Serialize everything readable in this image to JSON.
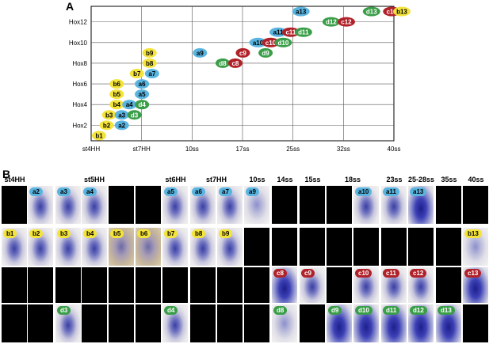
{
  "panel_a": {
    "letter": "A",
    "y_labels": [
      "Hox12",
      "Hox10",
      "Hox8",
      "Hox6",
      "Hox4",
      "Hox2"
    ],
    "x_labels": [
      "st4HH",
      "st7HH",
      "10ss",
      "17ss",
      "25ss",
      "32ss",
      "40ss"
    ],
    "colors": {
      "a": "#5ab4e0",
      "b": "#f3e33a",
      "c": "#b0222a",
      "d": "#3a9e48"
    },
    "markers": [
      {
        "label": "b1",
        "s": "b",
        "x": 0,
        "y": 0
      },
      {
        "label": "b2",
        "s": "b",
        "x": 0.15,
        "y": 1
      },
      {
        "label": "a2",
        "s": "a",
        "x": 0.45,
        "y": 1
      },
      {
        "label": "b3",
        "s": "b",
        "x": 0.2,
        "y": 2
      },
      {
        "label": "a3",
        "s": "a",
        "x": 0.45,
        "y": 2
      },
      {
        "label": "d3",
        "s": "d",
        "x": 0.7,
        "y": 2
      },
      {
        "label": "b4",
        "s": "b",
        "x": 0.35,
        "y": 3
      },
      {
        "label": "a4",
        "s": "a",
        "x": 0.6,
        "y": 3
      },
      {
        "label": "d4",
        "s": "d",
        "x": 0.85,
        "y": 3
      },
      {
        "label": "b5",
        "s": "b",
        "x": 0.35,
        "y": 4
      },
      {
        "label": "a5",
        "s": "a",
        "x": 0.85,
        "y": 4
      },
      {
        "label": "b6",
        "s": "b",
        "x": 0.35,
        "y": 5
      },
      {
        "label": "a6",
        "s": "a",
        "x": 0.85,
        "y": 5
      },
      {
        "label": "b7",
        "s": "b",
        "x": 0.75,
        "y": 6
      },
      {
        "label": "a7",
        "s": "a",
        "x": 1.05,
        "y": 6
      },
      {
        "label": "b8",
        "s": "b",
        "x": 1,
        "y": 7
      },
      {
        "label": "b9",
        "s": "b",
        "x": 1,
        "y": 8
      },
      {
        "label": "a9",
        "s": "a",
        "x": 2,
        "y": 8
      },
      {
        "label": "d8",
        "s": "d",
        "x": 2.45,
        "y": 7
      },
      {
        "label": "c8",
        "s": "c",
        "x": 2.7,
        "y": 7
      },
      {
        "label": "c9",
        "s": "c",
        "x": 2.85,
        "y": 8
      },
      {
        "label": "d9",
        "s": "d",
        "x": 3.3,
        "y": 8
      },
      {
        "label": "a10",
        "s": "a",
        "x": 3.15,
        "y": 9
      },
      {
        "label": "c10",
        "s": "c",
        "x": 3.4,
        "y": 9
      },
      {
        "label": "d10",
        "s": "d",
        "x": 3.65,
        "y": 9
      },
      {
        "label": "a11",
        "s": "a",
        "x": 3.55,
        "y": 10
      },
      {
        "label": "c11",
        "s": "c",
        "x": 3.8,
        "y": 10
      },
      {
        "label": "d11",
        "s": "d",
        "x": 4.05,
        "y": 10
      },
      {
        "label": "d12",
        "s": "d",
        "x": 4.6,
        "y": 11
      },
      {
        "label": "c12",
        "s": "c",
        "x": 4.9,
        "y": 11
      },
      {
        "label": "a13",
        "s": "a",
        "x": 4,
        "y": 12
      },
      {
        "label": "d13",
        "s": "d",
        "x": 5.4,
        "y": 12
      },
      {
        "label": "c13",
        "s": "c",
        "x": 5.8,
        "y": 12
      },
      {
        "label": "b13",
        "s": "b",
        "x": 6,
        "y": 12
      }
    ]
  },
  "panel_b": {
    "letter": "B",
    "column_headers": [
      "st4HH",
      "st5HH",
      "st6HH",
      "st7HH",
      "10ss",
      "14ss",
      "15ss",
      "18ss",
      "23ss",
      "25-28ss",
      "35ss",
      "40ss"
    ],
    "rows": [
      {
        "cells": [
          {
            "tag": "",
            "c": ""
          },
          {
            "tag": "a2",
            "c": "blue",
            "img": "img"
          },
          {
            "tag": "a3",
            "c": "blue",
            "img": "img"
          },
          {
            "tag": "a4",
            "c": "blue",
            "img": "img"
          },
          {
            "tag": "",
            "c": ""
          },
          {
            "tag": "",
            "c": ""
          },
          {
            "tag": "a5",
            "c": "blue",
            "img": "img"
          },
          {
            "tag": "a6",
            "c": "blue",
            "img": "img"
          },
          {
            "tag": "a7",
            "c": "blue",
            "img": "img"
          },
          {
            "tag": "a9",
            "c": "blue",
            "img": "light"
          },
          {
            "tag": "",
            "c": ""
          },
          {
            "tag": "",
            "c": ""
          },
          {
            "tag": "",
            "c": ""
          },
          {
            "tag": "a10",
            "c": "blue",
            "img": "img"
          },
          {
            "tag": "a11",
            "c": "blue",
            "img": "img"
          },
          {
            "tag": "a13",
            "c": "blue",
            "img": "dark"
          },
          {
            "tag": "",
            "c": ""
          },
          {
            "tag": "",
            "c": ""
          }
        ]
      },
      {
        "cells": [
          {
            "tag": "b1",
            "c": "yellow",
            "img": "img"
          },
          {
            "tag": "b2",
            "c": "yellow",
            "img": "img"
          },
          {
            "tag": "b3",
            "c": "yellow",
            "img": "img"
          },
          {
            "tag": "b4",
            "c": "yellow",
            "img": "img"
          },
          {
            "tag": "b5",
            "c": "yellow",
            "img": "tan"
          },
          {
            "tag": "b6",
            "c": "yellow",
            "img": "tan"
          },
          {
            "tag": "b7",
            "c": "yellow",
            "img": "img"
          },
          {
            "tag": "b8",
            "c": "yellow",
            "img": "img"
          },
          {
            "tag": "b9",
            "c": "yellow",
            "img": "img"
          },
          {
            "tag": "",
            "c": ""
          },
          {
            "tag": "",
            "c": ""
          },
          {
            "tag": "",
            "c": ""
          },
          {
            "tag": "",
            "c": ""
          },
          {
            "tag": "",
            "c": ""
          },
          {
            "tag": "",
            "c": ""
          },
          {
            "tag": "",
            "c": ""
          },
          {
            "tag": "",
            "c": ""
          },
          {
            "tag": "b13",
            "c": "yellow",
            "img": "light"
          }
        ]
      },
      {
        "cells": [
          {
            "tag": "",
            "c": ""
          },
          {
            "tag": "",
            "c": ""
          },
          {
            "tag": "",
            "c": ""
          },
          {
            "tag": "",
            "c": ""
          },
          {
            "tag": "",
            "c": ""
          },
          {
            "tag": "",
            "c": ""
          },
          {
            "tag": "",
            "c": ""
          },
          {
            "tag": "",
            "c": ""
          },
          {
            "tag": "",
            "c": ""
          },
          {
            "tag": "",
            "c": ""
          },
          {
            "tag": "c8",
            "c": "red",
            "img": "dark"
          },
          {
            "tag": "c9",
            "c": "red",
            "img": "img"
          },
          {
            "tag": "",
            "c": ""
          },
          {
            "tag": "c10",
            "c": "red",
            "img": "img"
          },
          {
            "tag": "c11",
            "c": "red",
            "img": "img"
          },
          {
            "tag": "c12",
            "c": "red",
            "img": "img"
          },
          {
            "tag": "",
            "c": ""
          },
          {
            "tag": "c13",
            "c": "red",
            "img": "dark"
          }
        ]
      },
      {
        "cells": [
          {
            "tag": "",
            "c": ""
          },
          {
            "tag": "",
            "c": ""
          },
          {
            "tag": "d3",
            "c": "green",
            "img": "img"
          },
          {
            "tag": "",
            "c": ""
          },
          {
            "tag": "",
            "c": ""
          },
          {
            "tag": "",
            "c": ""
          },
          {
            "tag": "d4",
            "c": "green",
            "img": "img"
          },
          {
            "tag": "",
            "c": ""
          },
          {
            "tag": "",
            "c": ""
          },
          {
            "tag": "",
            "c": ""
          },
          {
            "tag": "d8",
            "c": "green",
            "img": "light"
          },
          {
            "tag": "",
            "c": ""
          },
          {
            "tag": "d9",
            "c": "green",
            "img": "dark"
          },
          {
            "tag": "d10",
            "c": "green",
            "img": "dark"
          },
          {
            "tag": "d11",
            "c": "green",
            "img": "dark"
          },
          {
            "tag": "d12",
            "c": "green",
            "img": "dark"
          },
          {
            "tag": "d13",
            "c": "green",
            "img": "dark"
          },
          {
            "tag": "",
            "c": ""
          }
        ]
      }
    ]
  }
}
